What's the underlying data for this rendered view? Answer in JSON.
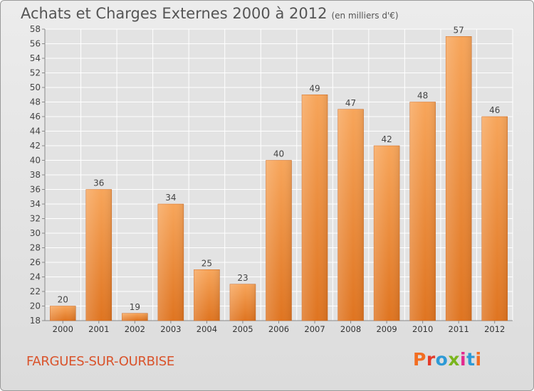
{
  "header": {
    "title": "Achats et Charges Externes 2000 à 2012",
    "unit": "(en milliers d'€)"
  },
  "footer": {
    "commune": "FARGUES-SUR-OURBISE",
    "brand": "Proxiti",
    "brand_colors": [
      "#f26e22",
      "#e33b2b",
      "#2d9ad6",
      "#7ab51d",
      "#e3298f",
      "#2d9ad6",
      "#f26e22"
    ]
  },
  "chart_data": {
    "type": "bar",
    "title": "Achats et Charges Externes 2000 à 2012",
    "subtitle": "(en milliers d'€)",
    "categories": [
      "2000",
      "2001",
      "2002",
      "2003",
      "2004",
      "2005",
      "2006",
      "2007",
      "2008",
      "2009",
      "2010",
      "2011",
      "2012"
    ],
    "values": [
      20,
      36,
      19,
      34,
      25,
      23,
      40,
      49,
      47,
      42,
      48,
      57,
      46
    ],
    "ylim": [
      18,
      58
    ],
    "yticks": [
      18,
      20,
      22,
      24,
      26,
      28,
      30,
      32,
      34,
      36,
      38,
      40,
      42,
      44,
      46,
      48,
      50,
      52,
      54,
      56,
      58
    ],
    "grid": true,
    "bar_color_top": "#f7a55a",
    "bar_color_bottom": "#df7420"
  }
}
